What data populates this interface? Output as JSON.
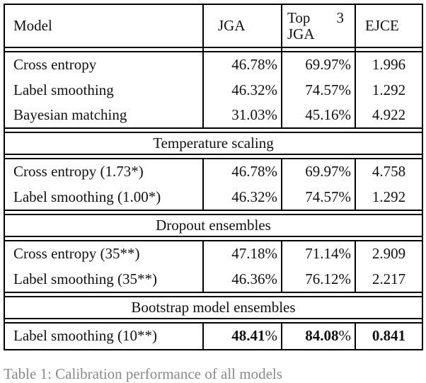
{
  "page": {
    "caption_partial": "Table 1: Calibration performance of all models"
  },
  "table": {
    "header": {
      "col1": "Model",
      "col2": "JGA",
      "col3_line1_a": "Top",
      "col3_line1_b": "3",
      "col3_line2": "JGA",
      "col4": "EJCE"
    },
    "section_headers": {
      "temperature": "Temperature scaling",
      "dropout": "Dropout ensembles",
      "bootstrap": "Bootstrap model ensembles"
    },
    "section1": {
      "rows": [
        {
          "label": "Cross entropy",
          "jga": "46.78%",
          "top3": "69.97%",
          "ejce": "1.996"
        },
        {
          "label": "Label smoothing",
          "jga": "46.32%",
          "top3": "74.57%",
          "ejce": "1.292"
        },
        {
          "label": "Bayesian matching",
          "jga": "31.03%",
          "top3": "45.16%",
          "ejce": "4.922"
        }
      ]
    },
    "section2": {
      "rows": [
        {
          "label": "Cross entropy (1.73*)",
          "jga": "46.78%",
          "top3": "69.97%",
          "ejce": "4.758"
        },
        {
          "label": "Label smoothing (1.00*)",
          "jga": "46.32%",
          "top3": "74.57%",
          "ejce": "1.292"
        }
      ]
    },
    "section3": {
      "rows": [
        {
          "label": "Cross entropy (35**)",
          "jga": "47.18%",
          "top3": "71.14%",
          "ejce": "2.909"
        },
        {
          "label": "Label smoothing (35**)",
          "jga": "46.36%",
          "top3": "76.12%",
          "ejce": "2.217"
        }
      ]
    },
    "section4": {
      "label": "Label smoothing (10**)",
      "jga_num": "48.41",
      "jga_sym": "%",
      "top3_num": "84.08",
      "top3_sym": "%",
      "ejce": "0.841"
    }
  }
}
